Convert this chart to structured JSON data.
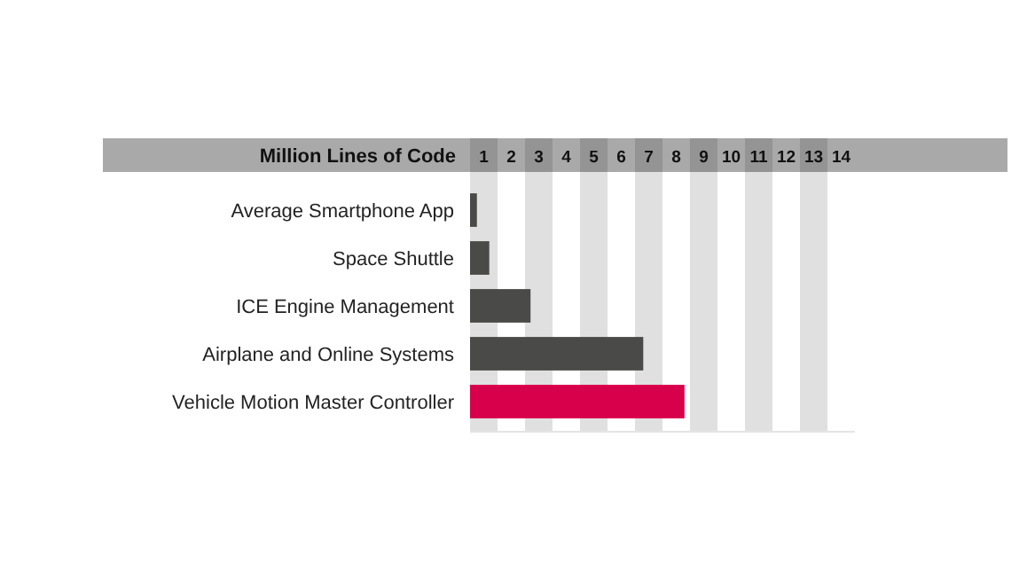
{
  "chart_data": {
    "type": "bar",
    "orientation": "horizontal",
    "xlabel": "Million Lines of Code",
    "categories": [
      "Average Smartphone App",
      "Space Shuttle",
      "ICE Engine Management",
      "Airplane and Online Systems",
      "Vehicle Motion Master Controller"
    ],
    "values": [
      0.25,
      0.7,
      2.2,
      6.3,
      7.8
    ],
    "colors": [
      "#4a4a48",
      "#4a4a48",
      "#4a4a48",
      "#4a4a48",
      "#d8004a"
    ],
    "xlim": [
      0,
      14
    ],
    "xticks": [
      {
        "value": 0.5,
        "label": "1"
      },
      {
        "value": 1.5,
        "label": "2"
      },
      {
        "value": 2.5,
        "label": "3"
      },
      {
        "value": 3.5,
        "label": "4"
      },
      {
        "value": 4.5,
        "label": "5"
      },
      {
        "value": 5.5,
        "label": "6"
      },
      {
        "value": 6.5,
        "label": "7"
      },
      {
        "value": 7.5,
        "label": "8"
      },
      {
        "value": 8.5,
        "label": "9"
      },
      {
        "value": 9.5,
        "label": "10"
      },
      {
        "value": 10.5,
        "label": "11"
      },
      {
        "value": 11.5,
        "label": "12"
      },
      {
        "value": 12.5,
        "label": "13"
      },
      {
        "value": 13.5,
        "label": "14"
      }
    ],
    "bands": [
      {
        "axis": "x",
        "from": 0,
        "to": 1,
        "color": "#d6d6d6"
      },
      {
        "axis": "x",
        "from": 2,
        "to": 3,
        "color": "#d6d6d6"
      },
      {
        "axis": "x",
        "from": 4,
        "to": 5,
        "color": "#d6d6d6"
      },
      {
        "axis": "x",
        "from": 6,
        "to": 7,
        "color": "#d6d6d6"
      },
      {
        "axis": "x",
        "from": 8,
        "to": 9,
        "color": "#d6d6d6"
      },
      {
        "axis": "x",
        "from": 10,
        "to": 11,
        "color": "#d6d6d6"
      },
      {
        "axis": "x",
        "from": 12,
        "to": 13,
        "color": "#d6d6d6"
      }
    ]
  }
}
